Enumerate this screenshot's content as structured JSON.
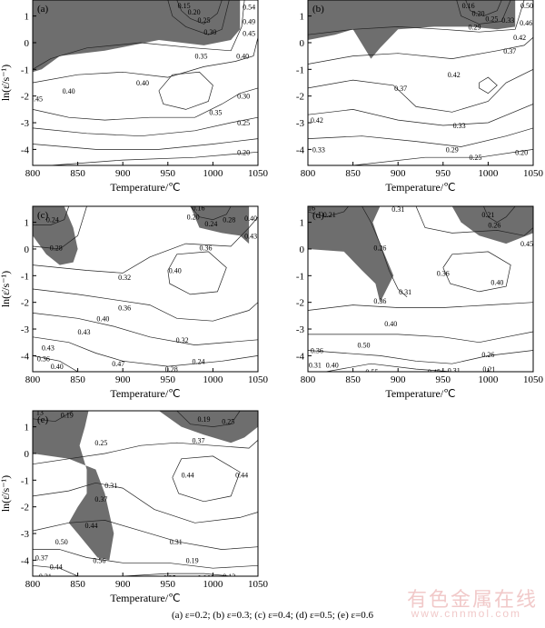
{
  "chart_data": [
    {
      "type": "contour",
      "panel_label": "(a)",
      "xlabel": "Temperature/℃",
      "ylabel": "ln(ε̇/s⁻¹)",
      "xlim": [
        800,
        1050
      ],
      "ylim": [
        -4.6,
        1.6
      ],
      "xticks": [
        "800",
        "850",
        "900",
        "950",
        "1000",
        "1050"
      ],
      "yticks": [
        "-4",
        "-3",
        "-2",
        "-1",
        "0",
        "1"
      ],
      "contour_labels": [
        {
          "text": "0.15",
          "x": 968,
          "y": 1.4
        },
        {
          "text": "0.20",
          "x": 979,
          "y": 1.15
        },
        {
          "text": "0.25",
          "x": 990,
          "y": 0.85
        },
        {
          "text": "0.30",
          "x": 997,
          "y": 0.4
        },
        {
          "text": "0.54",
          "x": 1040,
          "y": 1.35
        },
        {
          "text": "0.49",
          "x": 1040,
          "y": 0.8
        },
        {
          "text": "0.45",
          "x": 1040,
          "y": 0.35
        },
        {
          "text": "0.35",
          "x": 987,
          "y": -0.5
        },
        {
          "text": "0.40",
          "x": 1033,
          "y": -0.5
        },
        {
          "text": "0.40",
          "x": 840,
          "y": -1.8
        },
        {
          "text": "0.45",
          "x": 804,
          "y": -2.1
        },
        {
          "text": "0.40",
          "x": 922,
          "y": -1.5
        },
        {
          "text": "0.35",
          "x": 1003,
          "y": -2.6
        },
        {
          "text": "0.30",
          "x": 1034,
          "y": -2.0
        },
        {
          "text": "0.25",
          "x": 1034,
          "y": -3.0
        },
        {
          "text": "0.20",
          "x": 1034,
          "y": -4.1
        }
      ],
      "instability_regions": 1
    },
    {
      "type": "contour",
      "panel_label": "(b)",
      "xlabel": "Temperature/℃",
      "xlim": [
        800,
        1050
      ],
      "ylim": [
        -4.6,
        1.6
      ],
      "xticks": [
        "800",
        "850",
        "900",
        "950",
        "1000",
        "1050"
      ],
      "yticks": [
        "-4",
        "-3",
        "-2",
        "-1",
        "0",
        "1"
      ],
      "contour_labels": [
        {
          "text": "0.16",
          "x": 978,
          "y": 1.4
        },
        {
          "text": "0.20",
          "x": 989,
          "y": 1.1
        },
        {
          "text": "0.25",
          "x": 1004,
          "y": 0.9
        },
        {
          "text": "0.29",
          "x": 985,
          "y": 0.6
        },
        {
          "text": "0.33",
          "x": 1022,
          "y": 0.85
        },
        {
          "text": "0.46",
          "x": 1042,
          "y": 0.75
        },
        {
          "text": "0.50",
          "x": 1043,
          "y": 1.4
        },
        {
          "text": "0.42",
          "x": 1035,
          "y": 0.2
        },
        {
          "text": "0.37",
          "x": 1024,
          "y": -0.3
        },
        {
          "text": "0.37",
          "x": 903,
          "y": -1.7
        },
        {
          "text": "0.42",
          "x": 962,
          "y": -1.2
        },
        {
          "text": "0.42",
          "x": 810,
          "y": -2.9
        },
        {
          "text": "0.33",
          "x": 968,
          "y": -3.1
        },
        {
          "text": "0.33",
          "x": 812,
          "y": -4.0
        },
        {
          "text": "0.29",
          "x": 960,
          "y": -4.0
        },
        {
          "text": "0.25",
          "x": 986,
          "y": -4.3
        },
        {
          "text": "0.20",
          "x": 1037,
          "y": -4.1
        }
      ],
      "instability_regions": 1
    },
    {
      "type": "contour",
      "panel_label": "(c)",
      "xlabel": "Temperature/℃",
      "ylabel": "ln(ε̇/s⁻¹)",
      "xlim": [
        800,
        1050
      ],
      "ylim": [
        -4.6,
        1.6
      ],
      "xticks": [
        "800",
        "850",
        "900",
        "950",
        "1000",
        "1050"
      ],
      "yticks": [
        "-4",
        "-3",
        "-2",
        "-1",
        "0",
        "1"
      ],
      "contour_labels": [
        {
          "text": "0.24",
          "x": 822,
          "y": 1.1
        },
        {
          "text": "0.28",
          "x": 826,
          "y": 0.05
        },
        {
          "text": "0.16",
          "x": 984,
          "y": 1.55
        },
        {
          "text": "0.20",
          "x": 978,
          "y": 1.2
        },
        {
          "text": "0.24",
          "x": 998,
          "y": 0.95
        },
        {
          "text": "0.28",
          "x": 1018,
          "y": 1.1
        },
        {
          "text": "0.40",
          "x": 1042,
          "y": 1.15
        },
        {
          "text": "0.43",
          "x": 1042,
          "y": 0.5
        },
        {
          "text": "0.36",
          "x": 992,
          "y": 0.05
        },
        {
          "text": "0.32",
          "x": 902,
          "y": -1.05
        },
        {
          "text": "0.40",
          "x": 958,
          "y": -0.8
        },
        {
          "text": "0.36",
          "x": 902,
          "y": -2.2
        },
        {
          "text": "0.40",
          "x": 878,
          "y": -2.6
        },
        {
          "text": "0.43",
          "x": 857,
          "y": -3.1
        },
        {
          "text": "0.43",
          "x": 817,
          "y": -3.7
        },
        {
          "text": "0.36",
          "x": 812,
          "y": -4.1
        },
        {
          "text": "0.40",
          "x": 827,
          "y": -4.4
        },
        {
          "text": "0.28",
          "x": 812,
          "y": -4.7
        },
        {
          "text": "0.47",
          "x": 895,
          "y": -4.3
        },
        {
          "text": "0.32",
          "x": 966,
          "y": -3.4
        },
        {
          "text": "0.28",
          "x": 954,
          "y": -4.5
        },
        {
          "text": "0.24",
          "x": 984,
          "y": -4.2
        },
        {
          "text": "0.20",
          "x": 980,
          "y": -4.8
        }
      ],
      "instability_regions": 2
    },
    {
      "type": "contour",
      "panel_label": "(d)",
      "xlabel": "Temperature/℃",
      "xlim": [
        800,
        1050
      ],
      "ylim": [
        -4.6,
        1.6
      ],
      "xticks": [
        "800",
        "850",
        "900",
        "950",
        "1000",
        "1050"
      ],
      "yticks": [
        "-4",
        "-3",
        "-2",
        "-1",
        "0",
        "1"
      ],
      "contour_labels": [
        {
          "text": "16",
          "x": 804,
          "y": 1.55
        },
        {
          "text": "0.21",
          "x": 824,
          "y": 1.3
        },
        {
          "text": "0.26",
          "x": 880,
          "y": 0.05
        },
        {
          "text": "0.31",
          "x": 900,
          "y": 1.5
        },
        {
          "text": "0.21",
          "x": 1000,
          "y": 1.3
        },
        {
          "text": "0.26",
          "x": 1007,
          "y": 0.9
        },
        {
          "text": "0.45",
          "x": 1043,
          "y": 0.2
        },
        {
          "text": "0.36",
          "x": 950,
          "y": -0.9
        },
        {
          "text": "0.40",
          "x": 1010,
          "y": -1.25
        },
        {
          "text": "0.31",
          "x": 908,
          "y": -1.6
        },
        {
          "text": "0.36",
          "x": 880,
          "y": -1.95
        },
        {
          "text": "0.40",
          "x": 892,
          "y": -2.8
        },
        {
          "text": "0.50",
          "x": 862,
          "y": -3.6
        },
        {
          "text": "0.36",
          "x": 810,
          "y": -3.8
        },
        {
          "text": "0.31",
          "x": 808,
          "y": -4.35
        },
        {
          "text": "0.40",
          "x": 827,
          "y": -4.35
        },
        {
          "text": "0.55",
          "x": 871,
          "y": -4.6
        },
        {
          "text": "0.45",
          "x": 940,
          "y": -4.6
        },
        {
          "text": "0.31",
          "x": 962,
          "y": -4.55
        },
        {
          "text": "0.26",
          "x": 1000,
          "y": -3.95
        },
        {
          "text": "0.21",
          "x": 1001,
          "y": -4.5
        }
      ],
      "instability_regions": 2
    },
    {
      "type": "contour",
      "panel_label": "(e)",
      "xlabel": "Temperature/℃",
      "ylabel": "ln(ε̇/s⁻¹)",
      "xlim": [
        800,
        1050
      ],
      "ylim": [
        -4.6,
        1.6
      ],
      "xticks": [
        "800",
        "850",
        "900",
        "950",
        "1000",
        "1050"
      ],
      "yticks": [
        "-4",
        "-3",
        "-2",
        "-1",
        "0",
        "1"
      ],
      "contour_labels": [
        {
          "text": "13",
          "x": 808,
          "y": 1.55
        },
        {
          "text": "0.19",
          "x": 838,
          "y": 1.45
        },
        {
          "text": "0.25",
          "x": 876,
          "y": 0.4
        },
        {
          "text": "0.19",
          "x": 990,
          "y": 1.3
        },
        {
          "text": "0.25",
          "x": 1017,
          "y": 1.2
        },
        {
          "text": "0.37",
          "x": 984,
          "y": 0.5
        },
        {
          "text": "0.44",
          "x": 972,
          "y": -0.8
        },
        {
          "text": "0.44",
          "x": 1032,
          "y": -0.8
        },
        {
          "text": "0.31",
          "x": 887,
          "y": -1.2
        },
        {
          "text": "0.37",
          "x": 876,
          "y": -1.7
        },
        {
          "text": "0.44",
          "x": 865,
          "y": -2.7
        },
        {
          "text": "0.50",
          "x": 832,
          "y": -3.3
        },
        {
          "text": "0.31",
          "x": 959,
          "y": -3.3
        },
        {
          "text": "0.37",
          "x": 810,
          "y": -3.9
        },
        {
          "text": "0.44",
          "x": 826,
          "y": -4.25
        },
        {
          "text": "0.31",
          "x": 814,
          "y": -4.6
        },
        {
          "text": "0.56",
          "x": 874,
          "y": -4.0
        },
        {
          "text": "0.19",
          "x": 977,
          "y": -4.0
        },
        {
          "text": "0.25",
          "x": 952,
          "y": -4.65
        },
        {
          "text": "0.066",
          "x": 992,
          "y": -4.65
        },
        {
          "text": "0.13",
          "x": 1018,
          "y": -4.6
        }
      ],
      "instability_regions": 2
    }
  ],
  "caption": "(a) ε=0.2; (b) ε=0.3; (c) ε=0.4; (d) ε=0.5; (e) ε=0.6",
  "watermark": {
    "line1": "有色金属在线",
    "line2": "www.cnnmol.com"
  }
}
